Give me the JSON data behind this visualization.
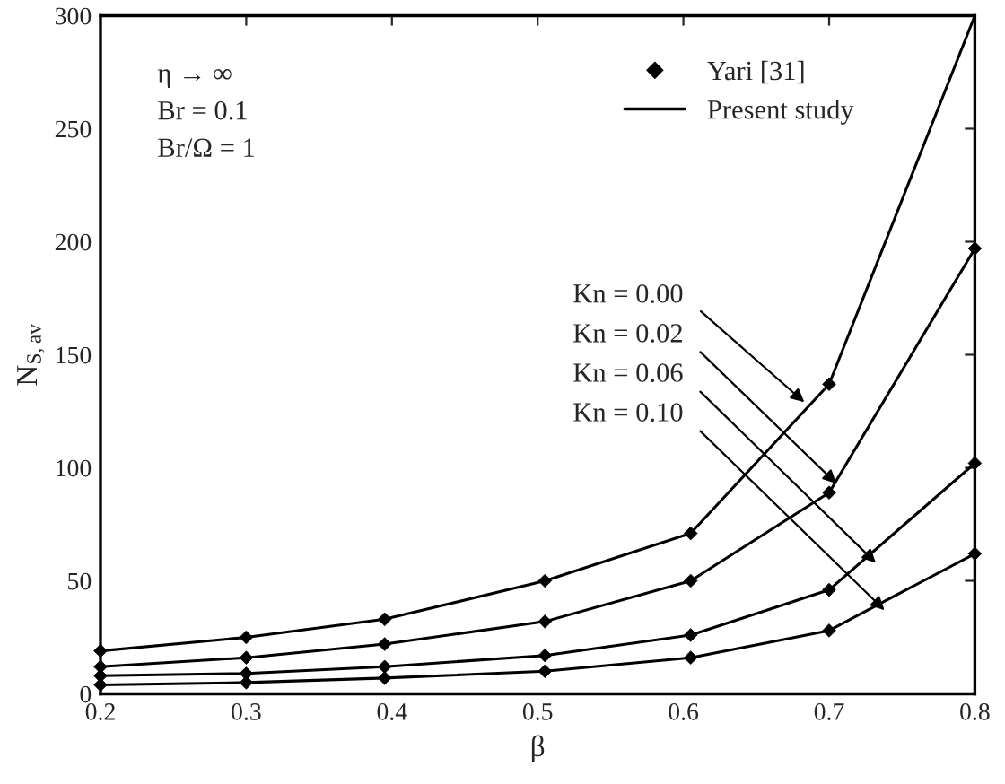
{
  "chart_data": {
    "type": "line",
    "xlabel": "β",
    "ylabel": "N$_{S,av}$",
    "xlim": [
      0.2,
      0.8
    ],
    "xticks": [
      0.2,
      0.3,
      0.4,
      0.5,
      0.6,
      0.7,
      0.8
    ],
    "ylim": [
      0,
      300
    ],
    "yticks": [
      0,
      50,
      100,
      150,
      200,
      250,
      300
    ],
    "grid": false,
    "legend": "top right",
    "series": [
      {
        "type": "scatter",
        "name": "Yari [31]",
        "color": "#000000",
        "marker": "diamond",
        "x": [
          0.2,
          0.3,
          0.395,
          0.505,
          0.605,
          0.7
        ],
        "values": [
          19,
          25,
          33,
          50,
          71,
          137
        ]
      },
      {
        "type": "scatter",
        "color": "#000000",
        "marker": "diamond",
        "x": [
          0.2,
          0.3,
          0.395,
          0.505,
          0.605,
          0.7,
          0.8
        ],
        "values": [
          12,
          16,
          22,
          32,
          50,
          89,
          197
        ]
      },
      {
        "type": "scatter",
        "color": "#000000",
        "marker": "diamond",
        "x": [
          0.2,
          0.3,
          0.395,
          0.505,
          0.605,
          0.7,
          0.8
        ],
        "values": [
          8,
          9,
          12,
          17,
          26,
          46,
          102
        ]
      },
      {
        "type": "scatter",
        "color": "#000000",
        "marker": "diamond",
        "x": [
          0.2,
          0.3,
          0.395,
          0.505,
          0.605,
          0.7,
          0.8
        ],
        "values": [
          4,
          5,
          7,
          10,
          16,
          28,
          62
        ]
      },
      {
        "name": "Present study",
        "color": "#000000",
        "line_style": "solid",
        "x": [
          0.2,
          0.3,
          0.395,
          0.505,
          0.605,
          0.7,
          0.8
        ],
        "values": [
          19,
          25,
          33,
          50,
          71,
          137,
          300
        ]
      },
      {
        "color": "#000000",
        "line_style": "solid",
        "x": [
          0.2,
          0.3,
          0.395,
          0.505,
          0.605,
          0.7,
          0.8
        ],
        "values": [
          12,
          16,
          22,
          32,
          50,
          89,
          197
        ]
      },
      {
        "color": "#000000",
        "line_style": "solid",
        "x": [
          0.2,
          0.3,
          0.395,
          0.505,
          0.605,
          0.7,
          0.8
        ],
        "values": [
          8,
          9,
          12,
          17,
          26,
          46,
          102
        ]
      },
      {
        "color": "#000000",
        "line_style": "solid",
        "x": [
          0.2,
          0.3,
          0.395,
          0.505,
          0.605,
          0.7,
          0.8
        ],
        "values": [
          4,
          5,
          7,
          10,
          16,
          28,
          62
        ]
      }
    ],
    "annotations": [
      "η → ∞",
      "Br = 0.1",
      "Br/Ω = 1",
      {
        "text": "Kn = 0.00",
        "x": 0.683,
        "y": 129
      },
      {
        "text": "Kn = 0.02",
        "x": 0.705,
        "y": 93
      },
      {
        "text": "Kn = 0.06",
        "x": 0.732,
        "y": 58
      },
      {
        "text": "Kn = 0.10",
        "x": 0.738,
        "y": 37
      }
    ]
  }
}
